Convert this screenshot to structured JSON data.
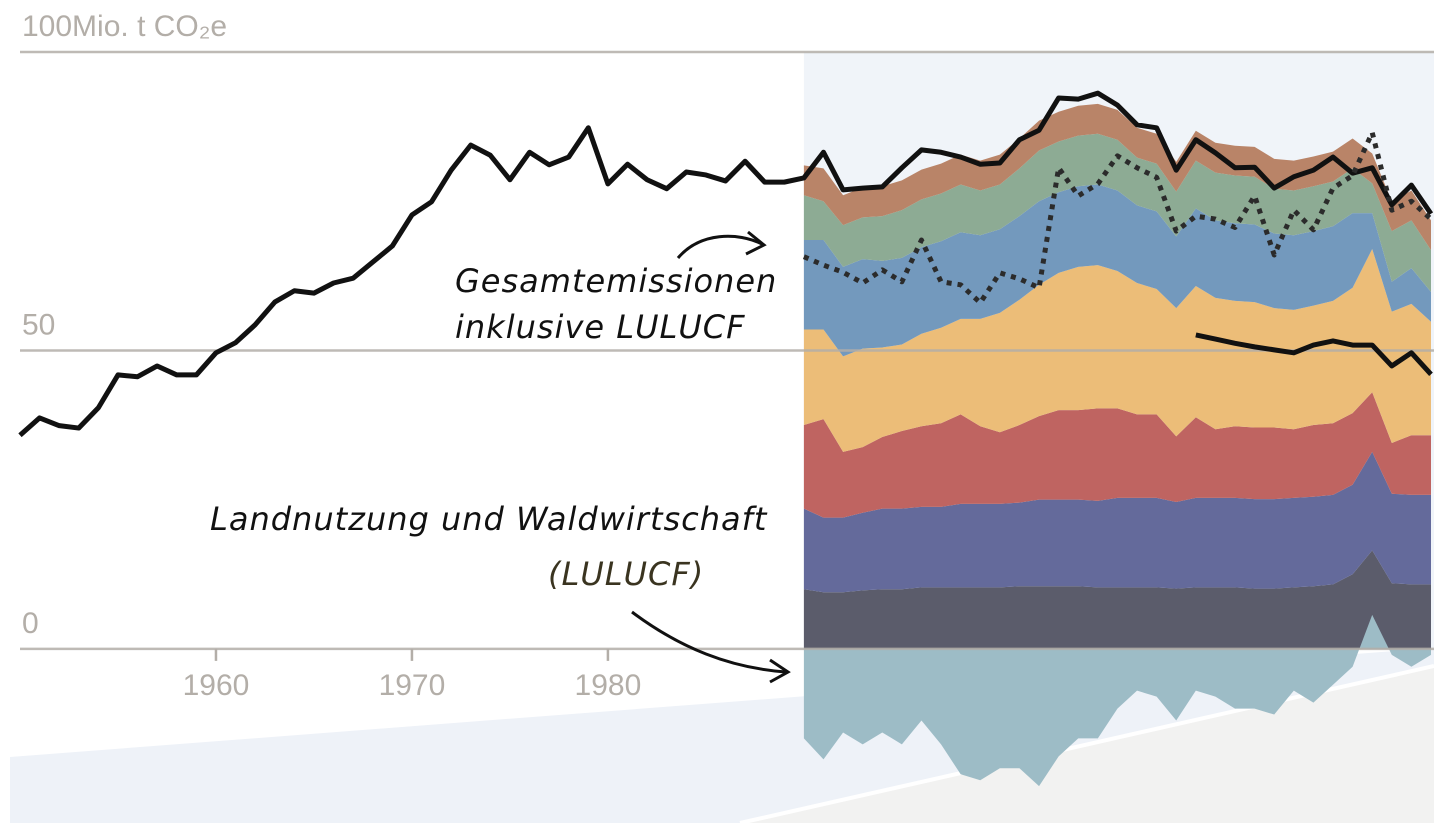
{
  "chart_data": {
    "type": "area",
    "xlim": [
      1950,
      2022
    ],
    "ylim": [
      -29,
      100
    ],
    "xticks": [
      1960,
      1970,
      1980
    ],
    "yticks": [
      0,
      50,
      {
        "value": 100,
        "label": "100Mio. t CO₂e"
      }
    ],
    "grid": true,
    "shaded_from": 1990,
    "stack": {
      "x": [
        1990,
        1991,
        1992,
        1993,
        1994,
        1995,
        1996,
        1997,
        1998,
        1999,
        2000,
        2001,
        2002,
        2003,
        2004,
        2005,
        2006,
        2007,
        2008,
        2009,
        2010,
        2011,
        2012,
        2013,
        2014,
        2015,
        2016,
        2017,
        2018,
        2019,
        2020,
        2021,
        2022
      ],
      "layers": [
        {
          "color": "#5b5c6b",
          "values": [
            10,
            9.5,
            9.5,
            9.8,
            10,
            10,
            10.3,
            10.3,
            10.3,
            10.3,
            10.3,
            10.5,
            10.5,
            10.5,
            10.5,
            10.3,
            10.3,
            10.3,
            10.3,
            10.1,
            10.3,
            10.3,
            10.3,
            10.1,
            10.1,
            10.3,
            10.5,
            10.8,
            12.5,
            16.5,
            11,
            10.8,
            10.8
          ]
        },
        {
          "color": "#646a9b",
          "values": [
            13.5,
            12.5,
            12.5,
            13,
            13.5,
            13.5,
            13.5,
            13.5,
            14,
            14,
            14,
            14,
            14.5,
            14.5,
            14.5,
            14.5,
            15,
            15,
            15,
            14.5,
            15,
            15,
            15,
            15,
            15,
            15,
            15,
            15,
            15,
            16.5,
            15,
            15,
            15
          ]
        },
        {
          "color": "#bf6461",
          "values": [
            14,
            16.5,
            11,
            11,
            12,
            13,
            13.5,
            14,
            15,
            13,
            12,
            13,
            14,
            15,
            15,
            15.5,
            15,
            14,
            14,
            11,
            13.5,
            11.5,
            12,
            12,
            12,
            11.5,
            12,
            12,
            12,
            10,
            8.5,
            10,
            10
          ]
        },
        {
          "color": "#ecbd78",
          "values": [
            16,
            15,
            16,
            16.5,
            15,
            14.5,
            15.5,
            16,
            16,
            18,
            20,
            21,
            22,
            23,
            24,
            24,
            23,
            22,
            21,
            21.5,
            22,
            22,
            21,
            21,
            20,
            20,
            20,
            20.5,
            21,
            24,
            22,
            22,
            19
          ]
        },
        {
          "color": "#7399bd",
          "values": [
            15,
            15,
            15,
            15,
            14.5,
            14.5,
            14.5,
            14.5,
            14.5,
            14,
            14,
            14,
            14,
            13.5,
            13.5,
            13.5,
            13.5,
            13,
            13,
            12,
            13,
            13,
            13,
            13,
            12.5,
            12.5,
            12.5,
            12.5,
            12.5,
            6,
            5,
            6,
            5
          ]
        },
        {
          "color": "#8dab94",
          "values": [
            7.5,
            6.5,
            7,
            7,
            7.5,
            8,
            8,
            8,
            8,
            7.5,
            7.5,
            8,
            8.5,
            8.5,
            8.5,
            8.5,
            8.5,
            8,
            8,
            7.5,
            8,
            8,
            8,
            8,
            7.5,
            7.5,
            7.5,
            7.5,
            7.5,
            5,
            8.5,
            8,
            7
          ]
        },
        {
          "color": "#b98468",
          "values": [
            5,
            5.5,
            5,
            5,
            5,
            5,
            5,
            5,
            5,
            5,
            5,
            5,
            5,
            5,
            5,
            5,
            5,
            5,
            5,
            5,
            5,
            5,
            5,
            5,
            5,
            5,
            5,
            5,
            5,
            5,
            5,
            5,
            5
          ]
        }
      ],
      "lulucf": {
        "color": "#9dbcc6",
        "values": [
          -15,
          -18.5,
          -14,
          -16,
          -14,
          -16,
          -12,
          -16,
          -21,
          -22,
          -20,
          -20,
          -23,
          -18,
          -15,
          -15,
          -10,
          -7,
          -8,
          -12,
          -7,
          -8,
          -10,
          -10,
          -11,
          -7,
          -9,
          -6,
          -3,
          5.7,
          -1,
          -3,
          -1
        ]
      }
    },
    "series": [
      {
        "color": "#111111",
        "style": "solid",
        "x": [
          1950,
          1951,
          1952,
          1953,
          1954,
          1955,
          1956,
          1957,
          1958,
          1959,
          1960,
          1961,
          1962,
          1963,
          1964,
          1965,
          1966,
          1967,
          1968,
          1969,
          1970,
          1971,
          1972,
          1973,
          1974,
          1975,
          1976,
          1977,
          1978,
          1979,
          1980,
          1981,
          1982,
          1983,
          1984,
          1985,
          1986,
          1987,
          1988,
          1989,
          1990,
          1991,
          1992,
          1993,
          1994,
          1995,
          1996,
          1997,
          1998,
          1999,
          2000,
          2001,
          2002,
          2003,
          2004,
          2005,
          2006,
          2007,
          2008,
          2009,
          2010,
          2011,
          2012,
          2013,
          2014,
          2015,
          2016,
          2017,
          2018,
          2019,
          2020,
          2021,
          2022
        ],
        "values": [
          35.8,
          38.7,
          37.4,
          37,
          40.4,
          45.9,
          45.6,
          47.4,
          45.9,
          45.9,
          49.6,
          51.3,
          54.3,
          58.1,
          60,
          59.6,
          61.3,
          62.1,
          64.8,
          67.5,
          72.7,
          74.9,
          80.2,
          84.4,
          82.7,
          78.6,
          83.2,
          81.1,
          82.4,
          87.3,
          77.9,
          81.2,
          78.6,
          77.1,
          79.9,
          79.4,
          78.4,
          81.7,
          78.2,
          78.2,
          78.9,
          83.2,
          76.9,
          77.2,
          77.4,
          80.6,
          83.6,
          83.2,
          82.4,
          81.2,
          81.4,
          85.3,
          86.9,
          92.3,
          92.1,
          93.1,
          91.1,
          87.8,
          87.3,
          80.2,
          85.3,
          83.1,
          80.6,
          80.7,
          77.2,
          79.1,
          80.2,
          82.4,
          79.7,
          80.6,
          74.4,
          77.7,
          72.9
        ]
      },
      {
        "color": "#2b2b2b",
        "style": "dotted",
        "x": [
          1990,
          1991,
          1992,
          1993,
          1994,
          1995,
          1996,
          1997,
          1998,
          1999,
          2000,
          2001,
          2002,
          2003,
          2004,
          2005,
          2006,
          2007,
          2008,
          2009,
          2010,
          2011,
          2012,
          2013,
          2014,
          2015,
          2016,
          2017,
          2018,
          2019,
          2020,
          2021,
          2022
        ],
        "values": [
          65.7,
          64.3,
          63.1,
          61.3,
          63.5,
          61.5,
          68.5,
          61.5,
          61,
          58,
          63,
          62,
          60.5,
          80.6,
          75.9,
          77.9,
          82.6,
          80.6,
          79,
          70,
          72.5,
          72,
          70.6,
          75.9,
          66,
          73.5,
          70.2,
          77.2,
          79.3,
          86.5,
          73.5,
          75,
          72
        ]
      },
      {
        "color": "#111111",
        "style": "solid",
        "x": [
          2010,
          2011,
          2012,
          2013,
          2014,
          2015,
          2016,
          2017,
          2018,
          2019,
          2020,
          2021,
          2022
        ],
        "values": [
          52.6,
          51.9,
          51.2,
          50.6,
          50.1,
          49.6,
          50.9,
          51.6,
          50.9,
          50.9,
          47.4,
          49.6,
          46
        ]
      }
    ],
    "annotations": [
      {
        "lines": [
          "Gesamtemissionen",
          "inklusive LULUCF"
        ]
      },
      {
        "lines": [
          "Landnutzung und Waldwirtschaft",
          "(LULUCF)"
        ]
      }
    ]
  }
}
